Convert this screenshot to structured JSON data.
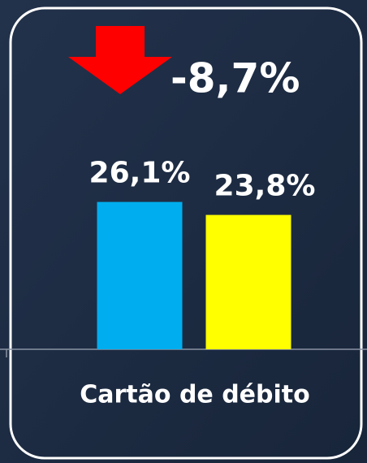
{
  "chart_data": {
    "type": "bar",
    "annotation": "-8,7%",
    "categories": [
      "Cartão de débito"
    ],
    "series": [
      {
        "color": "#00aeef",
        "values": [
          26.1
        ],
        "value_labels": [
          "26,1%"
        ]
      },
      {
        "color": "#ffff00",
        "values": [
          23.8
        ],
        "value_labels": [
          "23,8%"
        ]
      }
    ],
    "ylim": [
      0,
      40
    ]
  }
}
